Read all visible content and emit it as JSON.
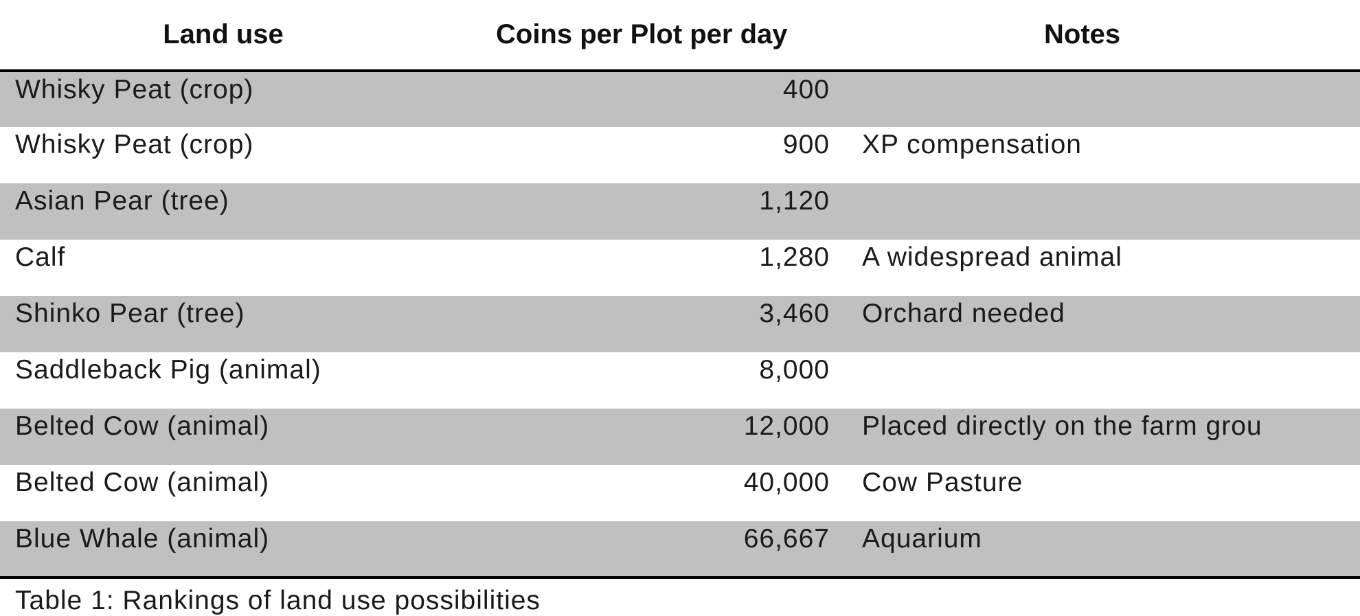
{
  "table": {
    "columns": [
      "Land use",
      "Coins per Plot per day",
      "Notes"
    ],
    "rows": [
      {
        "land_use": "Whisky Peat (crop)",
        "coins": "400",
        "notes": ""
      },
      {
        "land_use": "Whisky Peat (crop)",
        "coins": "900",
        "notes": "XP compensation"
      },
      {
        "land_use": "Asian Pear (tree)",
        "coins": "1,120",
        "notes": ""
      },
      {
        "land_use": "Calf",
        "coins": "1,280",
        "notes": "A widespread animal"
      },
      {
        "land_use": "Shinko Pear (tree)",
        "coins": "3,460",
        "notes": "Orchard needed"
      },
      {
        "land_use": "Saddleback Pig (animal)",
        "coins": "8,000",
        "notes": ""
      },
      {
        "land_use": "Belted Cow (animal)",
        "coins": "12,000",
        "notes": "Placed directly on the farm grou"
      },
      {
        "land_use": "Belted Cow (animal)",
        "coins": "40,000",
        "notes": "Cow Pasture"
      },
      {
        "land_use": "Blue Whale (animal)",
        "coins": "66,667",
        "notes": "Aquarium"
      }
    ],
    "row_shading": "#c0c0c0"
  },
  "caption": "Table 1: Rankings of land use possibilities"
}
